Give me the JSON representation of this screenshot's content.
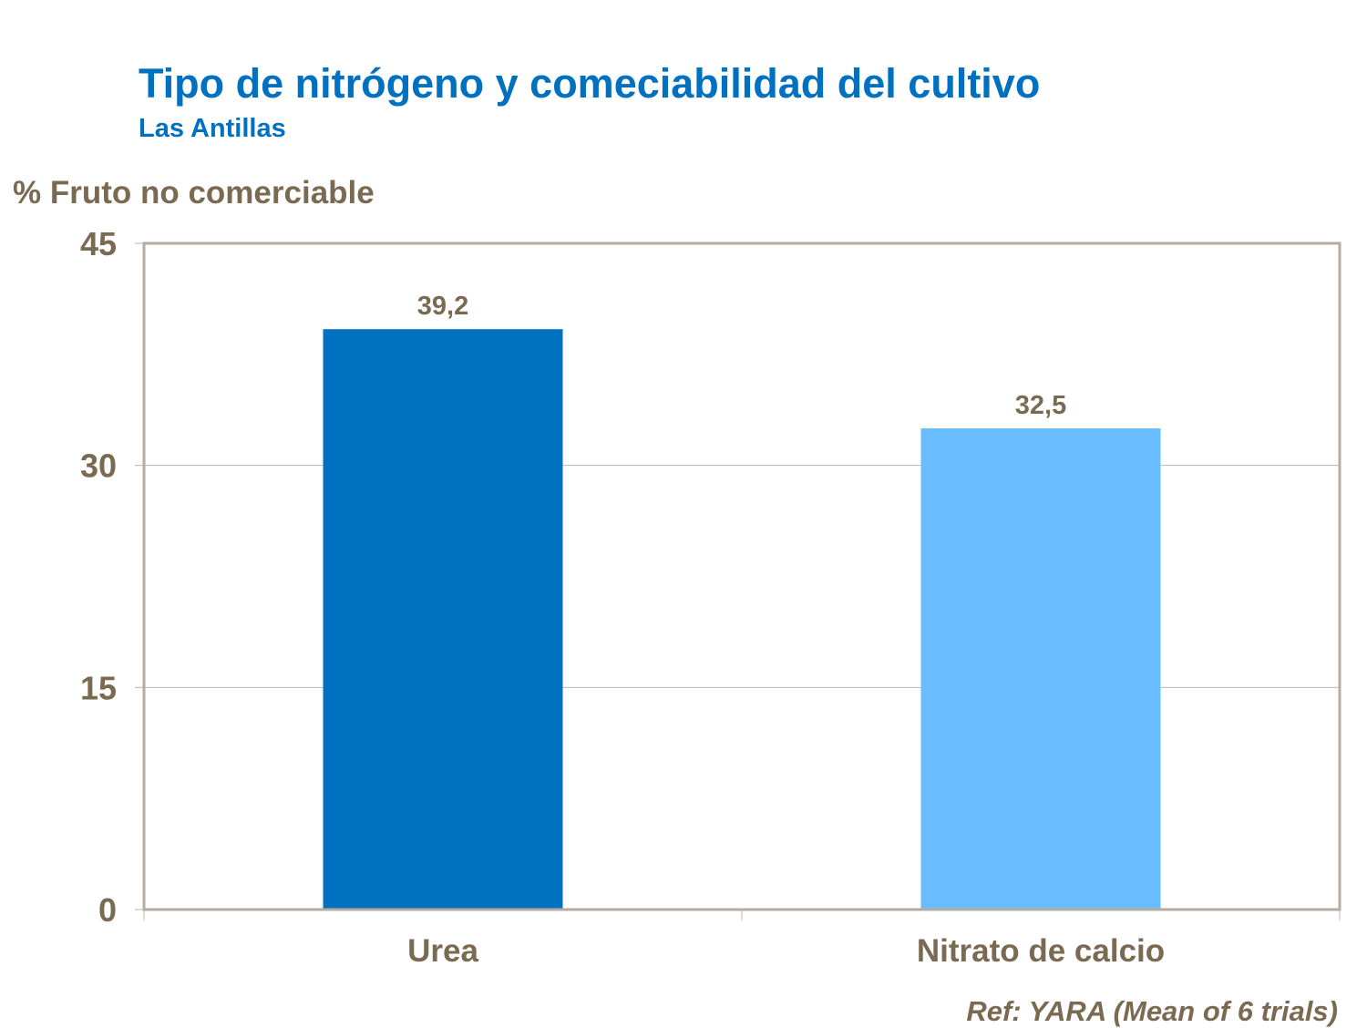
{
  "chart_data": {
    "type": "bar",
    "title": "Tipo de nitrógeno y comeciabilidad del cultivo",
    "subtitle": "Las Antillas",
    "ylabel": "% Fruto no comerciable",
    "xlabel": "",
    "categories": [
      "Urea",
      "Nitrato de calcio"
    ],
    "values": [
      39.2,
      32.5
    ],
    "data_labels": [
      "39,2",
      "32,5"
    ],
    "bar_colors": [
      "#0070C0",
      "#69BDFF"
    ],
    "ylim": [
      0,
      45
    ],
    "yticks": [
      0,
      15,
      30,
      45
    ],
    "grid": true,
    "legend": "none",
    "source_note": "Ref: YARA (Mean of 6 trials)"
  },
  "colors": {
    "title": "#0070C0",
    "text": "#7B6A52",
    "frame": "#B5ABA0",
    "grid": "#BDB6AD"
  }
}
